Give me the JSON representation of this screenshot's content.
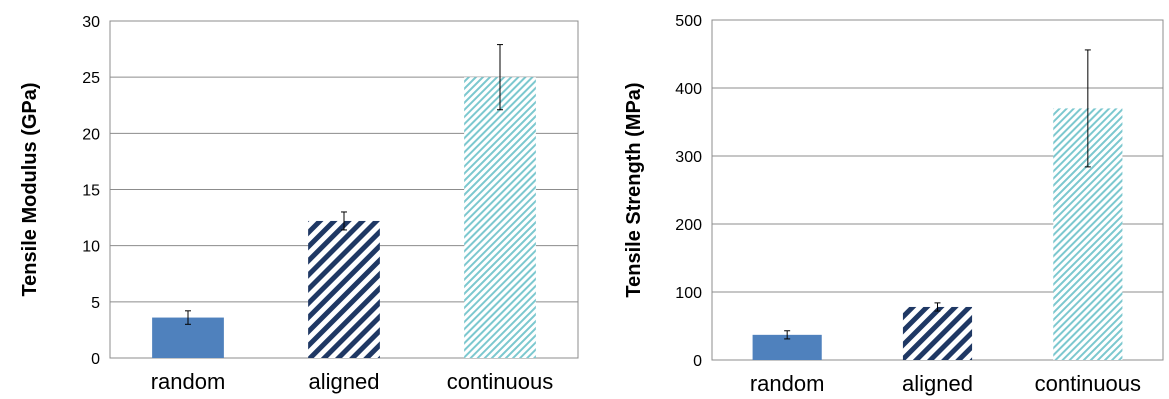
{
  "chart_data": [
    {
      "type": "bar",
      "title": "",
      "xlabel": "",
      "ylabel": "Tensile Modulus (GPa)",
      "categories": [
        "random",
        "aligned",
        "continuous"
      ],
      "values": [
        3.6,
        12.2,
        25.0
      ],
      "errors": [
        0.6,
        0.8,
        2.9
      ],
      "ylim": [
        0,
        30
      ],
      "yticks": [
        "0",
        "5",
        "10",
        "15",
        "20",
        "25",
        "30"
      ],
      "grid": true,
      "legend": "none",
      "fills": [
        "solid",
        "dark-diagonal-stripes",
        "light-diagonal-stripes"
      ],
      "colors": [
        "#4f81bd",
        "#1f3864",
        "#7cc8cf"
      ]
    },
    {
      "type": "bar",
      "title": "",
      "xlabel": "",
      "ylabel": "Tensile Strength (MPa)",
      "categories": [
        "random",
        "aligned",
        "continuous"
      ],
      "values": [
        37,
        78,
        370
      ],
      "errors": [
        6,
        6,
        86
      ],
      "ylim": [
        0,
        500
      ],
      "yticks": [
        "0",
        "100",
        "200",
        "300",
        "400",
        "500"
      ],
      "grid": true,
      "legend": "none",
      "fills": [
        "solid",
        "dark-diagonal-stripes",
        "light-diagonal-stripes"
      ],
      "colors": [
        "#4f81bd",
        "#1f3864",
        "#7cc8cf"
      ]
    }
  ]
}
